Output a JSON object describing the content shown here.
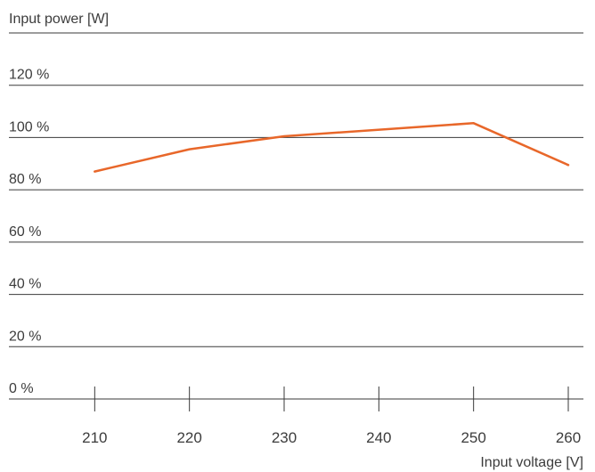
{
  "chart_data": {
    "type": "line",
    "ylabel": "Input power [W]",
    "xlabel": "Input voltage [V]",
    "y_ticks": [
      "0 %",
      "20 %",
      "40 %",
      "60 %",
      "80 %",
      "100 %",
      "120 %"
    ],
    "y_tick_values": [
      0,
      20,
      40,
      60,
      80,
      100,
      120
    ],
    "x_ticks": [
      "210",
      "220",
      "230",
      "240",
      "250",
      "260"
    ],
    "x_tick_values": [
      210,
      220,
      230,
      240,
      250,
      260
    ],
    "xlim": [
      200,
      260
    ],
    "ylim": [
      0,
      140
    ],
    "grid": true,
    "series": [
      {
        "color": "#e8672a",
        "x": [
          210,
          220,
          230,
          250,
          260
        ],
        "y": [
          87,
          95.5,
          100.5,
          105.5,
          89.5
        ]
      }
    ]
  }
}
